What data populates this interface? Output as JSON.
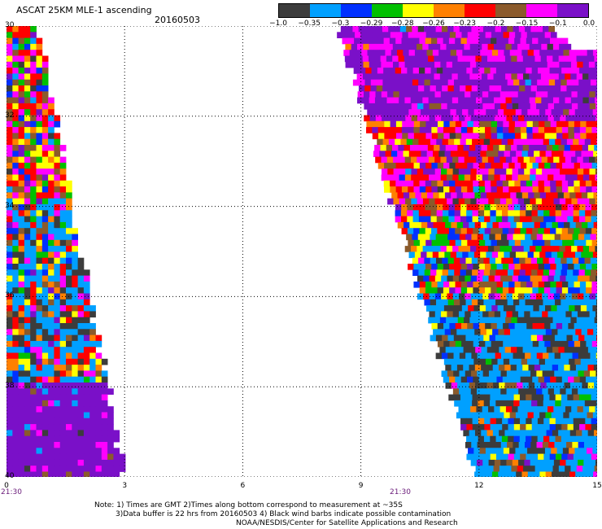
{
  "header": {
    "title": "ASCAT 25KM MLE-1 ascending",
    "date": "20160503"
  },
  "colorbar": {
    "colors": [
      "#3c3c3c",
      "#00a0ff",
      "#0030ff",
      "#00c000",
      "#ffff00",
      "#ff8000",
      "#ff0000",
      "#8b5a2b",
      "#ff00ff",
      "#7a10c8"
    ],
    "tick_labels": [
      "−1.0",
      "−0.35",
      "−0.3",
      "−0.29",
      "−0.28",
      "−0.26",
      "−0.23",
      "−0.2",
      "−0.15",
      "−0.1",
      "0.0"
    ]
  },
  "axes": {
    "y_ticks": [
      {
        "value": 30,
        "label": "30"
      },
      {
        "value": 32,
        "label": "32"
      },
      {
        "value": 34,
        "label": "34"
      },
      {
        "value": 36,
        "label": "36"
      },
      {
        "value": 38,
        "label": "38"
      },
      {
        "value": 40,
        "label": "40"
      }
    ],
    "x_ticks": [
      {
        "value": 0,
        "label": "0"
      },
      {
        "value": 3,
        "label": "3"
      },
      {
        "value": 6,
        "label": "6"
      },
      {
        "value": 9,
        "label": "9"
      },
      {
        "value": 12,
        "label": "12"
      },
      {
        "value": 15,
        "label": "15"
      }
    ],
    "xlim": [
      0,
      15
    ],
    "ylim": [
      30,
      40
    ],
    "grid": "dotted"
  },
  "swaths": [
    {
      "name": "left-swath",
      "time_label": "21:30",
      "time_x": 0
    },
    {
      "name": "right-swath",
      "time_label": "21:30",
      "time_x": 10
    }
  ],
  "notes": {
    "line1": "Note: 1) Times are GMT 2)Times along bottom correspond to measurement at ~35S",
    "line2": "3)Data buffer is 22 hrs from 20160503 4) Black wind barbs indicate possible contamination",
    "line3": "NOAA/NESDIS/Center for Satellite Applications and Research"
  }
}
